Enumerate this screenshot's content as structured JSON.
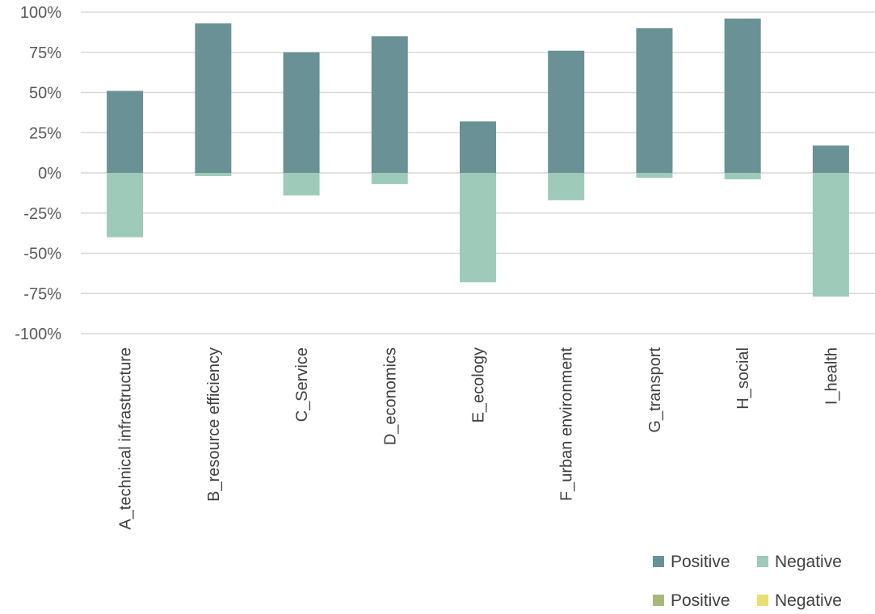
{
  "chart_data": {
    "type": "bar",
    "stacked": true,
    "categories": [
      "A_technical infrastructure",
      "B_resource efficiency",
      "C_Service",
      "D_economics",
      "E_ecology",
      "F_urban environment",
      "G_transport",
      "H_social",
      "I_health"
    ],
    "series": [
      {
        "name": "Positive",
        "color": "#6a9196",
        "values": [
          51,
          93,
          75,
          85,
          32,
          76,
          90,
          96,
          17
        ]
      },
      {
        "name": "Negative",
        "color": "#9ecbb9",
        "values": [
          -40,
          -2,
          -14,
          -7,
          -68,
          -17,
          -3,
          -4,
          -77
        ]
      }
    ],
    "extra_legend": [
      {
        "name": "Positive",
        "color": "#a8b87c"
      },
      {
        "name": "Negative",
        "color": "#e8e070"
      }
    ],
    "ylim": [
      -100,
      100
    ],
    "yticks": [
      100,
      75,
      50,
      25,
      0,
      -25,
      -50,
      -75,
      -100
    ],
    "ytick_labels": [
      "100%",
      "75%",
      "50%",
      "25%",
      "0%",
      "-25%",
      "-50%",
      "-75%",
      "-100%"
    ],
    "grid": true,
    "legend_position": "bottom-right"
  }
}
